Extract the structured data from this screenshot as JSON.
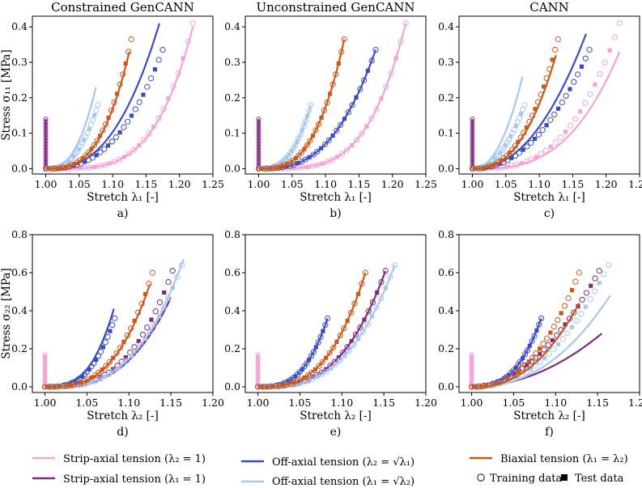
{
  "colors": {
    "strip1": "#f3a3d6",
    "strip2": "#7f2a80",
    "off1": "#3c4cc0",
    "off2": "#a9c6ee",
    "biax": "#c95a1c"
  },
  "legend": {
    "strip1": "Strip-axial tension (λ₂ = 1)",
    "strip2": "Strip-axial tension (λ₁ = 1)",
    "off1": "Off-axial tension (λ₂ = √λ₁)",
    "off2": "Off-axial tension (λ₁ = √λ₂)",
    "biax": "Biaxial tension (λ₁ = λ₂)",
    "training": "Training data",
    "test": "Test data"
  },
  "chart_data": [
    {
      "type": "line",
      "title": "Constrained GenCANN",
      "panel_label": "a)",
      "xlabel": "Stretch λ₁ [-]",
      "ylabel": "Stress σ₁₁ [MPa]",
      "xlim": [
        0.98,
        1.25
      ],
      "ylim": [
        -0.015,
        0.43
      ],
      "xticks": [
        "1.00",
        "1.05",
        "1.10",
        "1.15",
        "1.20",
        "1.25"
      ],
      "yticks": [
        "0.0",
        "0.1",
        "0.2",
        "0.3",
        "0.4"
      ],
      "series": [
        {
          "key": "strip1",
          "data_end": [
            1.22,
            0.41
          ],
          "model_end": [
            1.22,
            0.4
          ],
          "p": 4
        },
        {
          "key": "strip2",
          "vertical": true,
          "x": 1.0,
          "ymax": 0.14
        },
        {
          "key": "off1",
          "data_end": [
            1.175,
            0.335
          ],
          "model_end": [
            1.17,
            0.41
          ],
          "p": 2.6
        },
        {
          "key": "off2",
          "data_end": [
            1.078,
            0.18
          ],
          "model_end": [
            1.075,
            0.23
          ],
          "p": 2.6
        },
        {
          "key": "biax",
          "data_end": [
            1.128,
            0.365
          ],
          "model_end": [
            1.125,
            0.33
          ],
          "p": 3
        }
      ]
    },
    {
      "type": "line",
      "title": "Unconstrained GenCANN",
      "panel_label": "b)",
      "xlabel": "Stretch λ₁ [-]",
      "ylabel": "",
      "xlim": [
        0.98,
        1.25
      ],
      "ylim": [
        -0.015,
        0.43
      ],
      "xticks": [
        "1.00",
        "1.05",
        "1.10",
        "1.15",
        "1.20",
        "1.25"
      ],
      "yticks": [
        "0.0",
        "0.1",
        "0.2",
        "0.3",
        "0.4"
      ],
      "series": [
        {
          "key": "strip1",
          "data_end": [
            1.22,
            0.41
          ],
          "model_end": [
            1.22,
            0.41
          ],
          "p": 4
        },
        {
          "key": "strip2",
          "vertical": true,
          "x": 1.0,
          "ymax": 0.14
        },
        {
          "key": "off1",
          "data_end": [
            1.175,
            0.335
          ],
          "model_end": [
            1.175,
            0.335
          ],
          "p": 2.8
        },
        {
          "key": "off2",
          "data_end": [
            1.078,
            0.18
          ],
          "model_end": [
            1.078,
            0.18
          ],
          "p": 2.8
        },
        {
          "key": "biax",
          "data_end": [
            1.128,
            0.365
          ],
          "model_end": [
            1.128,
            0.365
          ],
          "p": 3
        }
      ]
    },
    {
      "type": "line",
      "title": "CANN",
      "panel_label": "c)",
      "xlabel": "Stretch λ₁ [-]",
      "ylabel": "",
      "xlim": [
        0.98,
        1.25
      ],
      "ylim": [
        -0.015,
        0.43
      ],
      "xticks": [
        "1.00",
        "1.05",
        "1.10",
        "1.15",
        "1.20",
        "1.25"
      ],
      "yticks": [
        "0.0",
        "0.1",
        "0.2",
        "0.3",
        "0.4"
      ],
      "series": [
        {
          "key": "strip1",
          "data_end": [
            1.22,
            0.41
          ],
          "model_end": [
            1.22,
            0.33
          ],
          "p": 3
        },
        {
          "key": "strip2",
          "vertical": true,
          "x": 1.0,
          "ymax": 0.14
        },
        {
          "key": "off1",
          "data_end": [
            1.175,
            0.335
          ],
          "model_end": [
            1.17,
            0.38
          ],
          "p": 2.2
        },
        {
          "key": "off2",
          "data_end": [
            1.078,
            0.18
          ],
          "model_end": [
            1.075,
            0.26
          ],
          "p": 2.2
        },
        {
          "key": "biax",
          "data_end": [
            1.128,
            0.365
          ],
          "model_end": [
            1.125,
            0.32
          ],
          "p": 2.5
        }
      ]
    },
    {
      "type": "line",
      "title": "",
      "panel_label": "d)",
      "xlabel": "Stretch λ₂ [-]",
      "ylabel": "Stress σ₂₂ [MPa]",
      "xlim": [
        0.985,
        1.2
      ],
      "ylim": [
        -0.03,
        0.8
      ],
      "xticks": [
        "1.00",
        "1.05",
        "1.10",
        "1.15",
        "1.20"
      ],
      "yticks": [
        "0.0",
        "0.2",
        "0.4",
        "0.6",
        "0.8"
      ],
      "series": [
        {
          "key": "strip1",
          "vertical": true,
          "x": 1.0,
          "ymax": 0.17
        },
        {
          "key": "strip2",
          "data_end": [
            1.152,
            0.61
          ],
          "model_end": [
            1.15,
            0.47
          ],
          "p": 3
        },
        {
          "key": "off1",
          "data_end": [
            1.083,
            0.36
          ],
          "model_end": [
            1.082,
            0.41
          ],
          "p": 3
        },
        {
          "key": "off2",
          "data_end": [
            1.163,
            0.64
          ],
          "model_end": [
            1.165,
            0.67
          ],
          "p": 3
        },
        {
          "key": "biax",
          "data_end": [
            1.128,
            0.6
          ],
          "model_end": [
            1.125,
            0.54
          ],
          "p": 3
        }
      ]
    },
    {
      "type": "line",
      "title": "",
      "panel_label": "e)",
      "xlabel": "Stretch λ₂ [-]",
      "ylabel": "",
      "xlim": [
        0.985,
        1.2
      ],
      "ylim": [
        -0.03,
        0.8
      ],
      "xticks": [
        "1.00",
        "1.05",
        "1.10",
        "1.15",
        "1.20"
      ],
      "yticks": [
        "0.0",
        "0.2",
        "0.4",
        "0.6",
        "0.8"
      ],
      "series": [
        {
          "key": "strip1",
          "vertical": true,
          "x": 1.0,
          "ymax": 0.17
        },
        {
          "key": "strip2",
          "data_end": [
            1.152,
            0.61
          ],
          "model_end": [
            1.152,
            0.61
          ],
          "p": 3
        },
        {
          "key": "off1",
          "data_end": [
            1.083,
            0.36
          ],
          "model_end": [
            1.083,
            0.36
          ],
          "p": 3
        },
        {
          "key": "off2",
          "data_end": [
            1.163,
            0.64
          ],
          "model_end": [
            1.163,
            0.64
          ],
          "p": 3
        },
        {
          "key": "biax",
          "data_end": [
            1.128,
            0.6
          ],
          "model_end": [
            1.128,
            0.6
          ],
          "p": 3
        }
      ]
    },
    {
      "type": "line",
      "title": "",
      "panel_label": "f)",
      "xlabel": "Stretch λ₂ [-]",
      "ylabel": "",
      "xlim": [
        0.985,
        1.2
      ],
      "ylim": [
        -0.03,
        0.8
      ],
      "xticks": [
        "1.00",
        "1.05",
        "1.10",
        "1.15",
        "1.20"
      ],
      "yticks": [
        "0.0",
        "0.2",
        "0.4",
        "0.6",
        "0.8"
      ],
      "series": [
        {
          "key": "strip1",
          "vertical": true,
          "x": 1.0,
          "ymax": 0.17
        },
        {
          "key": "strip2",
          "data_end": [
            1.152,
            0.61
          ],
          "model_end": [
            1.155,
            0.28
          ],
          "p": 2
        },
        {
          "key": "off1",
          "data_end": [
            1.083,
            0.36
          ],
          "model_end": [
            1.083,
            0.36
          ],
          "p": 2.8
        },
        {
          "key": "off2",
          "data_end": [
            1.163,
            0.64
          ],
          "model_end": [
            1.165,
            0.48
          ],
          "p": 2.3
        },
        {
          "key": "biax",
          "data_end": [
            1.128,
            0.6
          ],
          "model_end": [
            1.128,
            0.44
          ],
          "p": 2.4
        }
      ]
    }
  ]
}
